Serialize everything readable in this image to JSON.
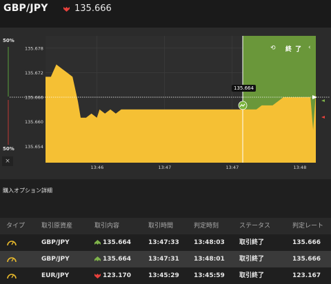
{
  "header": {
    "pair": "GBP/JPY",
    "price": "135.666",
    "price_direction": "down",
    "down_color": "#e8413c"
  },
  "chart": {
    "left_top_pct": "50%",
    "left_bottom_pct": "50%",
    "close_label": "×",
    "end_label": "終 了",
    "end_icon": "refresh-icon",
    "price_tag": "135.664",
    "colors": {
      "fill": "#f5c034",
      "end_zone": "#6a973a",
      "bg": "#2b2b2b",
      "axis_text": "#d7d7d7"
    }
  },
  "chart_data": {
    "type": "area",
    "y_ticks": [
      "135.678",
      "135.672",
      "135.666",
      "135.660",
      "135.654"
    ],
    "x_ticks": [
      "13:46",
      "13:47",
      "13:47",
      "13:48"
    ],
    "ylim": [
      135.65,
      135.681
    ],
    "reference_line": 135.666,
    "entry_marker_value": 135.664,
    "x": [
      0,
      2,
      4,
      6,
      8,
      10,
      12,
      13,
      15,
      17,
      19,
      20,
      22,
      24,
      26,
      28,
      30,
      32,
      34,
      38,
      42,
      46,
      50,
      54,
      58,
      62,
      66,
      70,
      74,
      78,
      80,
      82,
      84,
      86,
      88,
      90,
      92,
      94,
      96,
      97,
      98,
      99,
      100
    ],
    "values": [
      135.671,
      135.671,
      135.674,
      135.673,
      135.672,
      135.671,
      135.665,
      135.661,
      135.661,
      135.662,
      135.661,
      135.663,
      135.662,
      135.663,
      135.662,
      135.663,
      135.663,
      135.663,
      135.663,
      135.663,
      135.663,
      135.663,
      135.663,
      135.663,
      135.663,
      135.663,
      135.663,
      135.663,
      135.663,
      135.663,
      135.664,
      135.664,
      135.664,
      135.665,
      135.666,
      135.666,
      135.666,
      135.666,
      135.666,
      135.666,
      135.666,
      135.658,
      135.667
    ],
    "ylabel": "",
    "xlabel": ""
  },
  "section": {
    "title": "購入オプション詳細"
  },
  "table": {
    "headers": [
      "タイプ",
      "取引原資産",
      "取引内容",
      "取引時間",
      "判定時刻",
      "ステータス",
      "判定レート"
    ],
    "rows": [
      {
        "type_icon": "gauge-icon",
        "asset": "GBP/JPY",
        "direction": "up",
        "content": "135.664",
        "trade_time": "13:47:33",
        "judge_time": "13:48:03",
        "status": "取引終了",
        "rate": "135.666"
      },
      {
        "type_icon": "gauge-icon",
        "asset": "GBP/JPY",
        "direction": "up",
        "content": "135.664",
        "trade_time": "13:47:31",
        "judge_time": "13:48:01",
        "status": "取引終了",
        "rate": "135.666"
      },
      {
        "type_icon": "gauge-icon",
        "asset": "EUR/JPY",
        "direction": "down",
        "content": "123.170",
        "trade_time": "13:45:29",
        "judge_time": "13:45:59",
        "status": "取引終了",
        "rate": "123.167"
      }
    ],
    "colors": {
      "gold": "#e8b92c",
      "up": "#7fb34a",
      "down": "#e8413c"
    }
  }
}
